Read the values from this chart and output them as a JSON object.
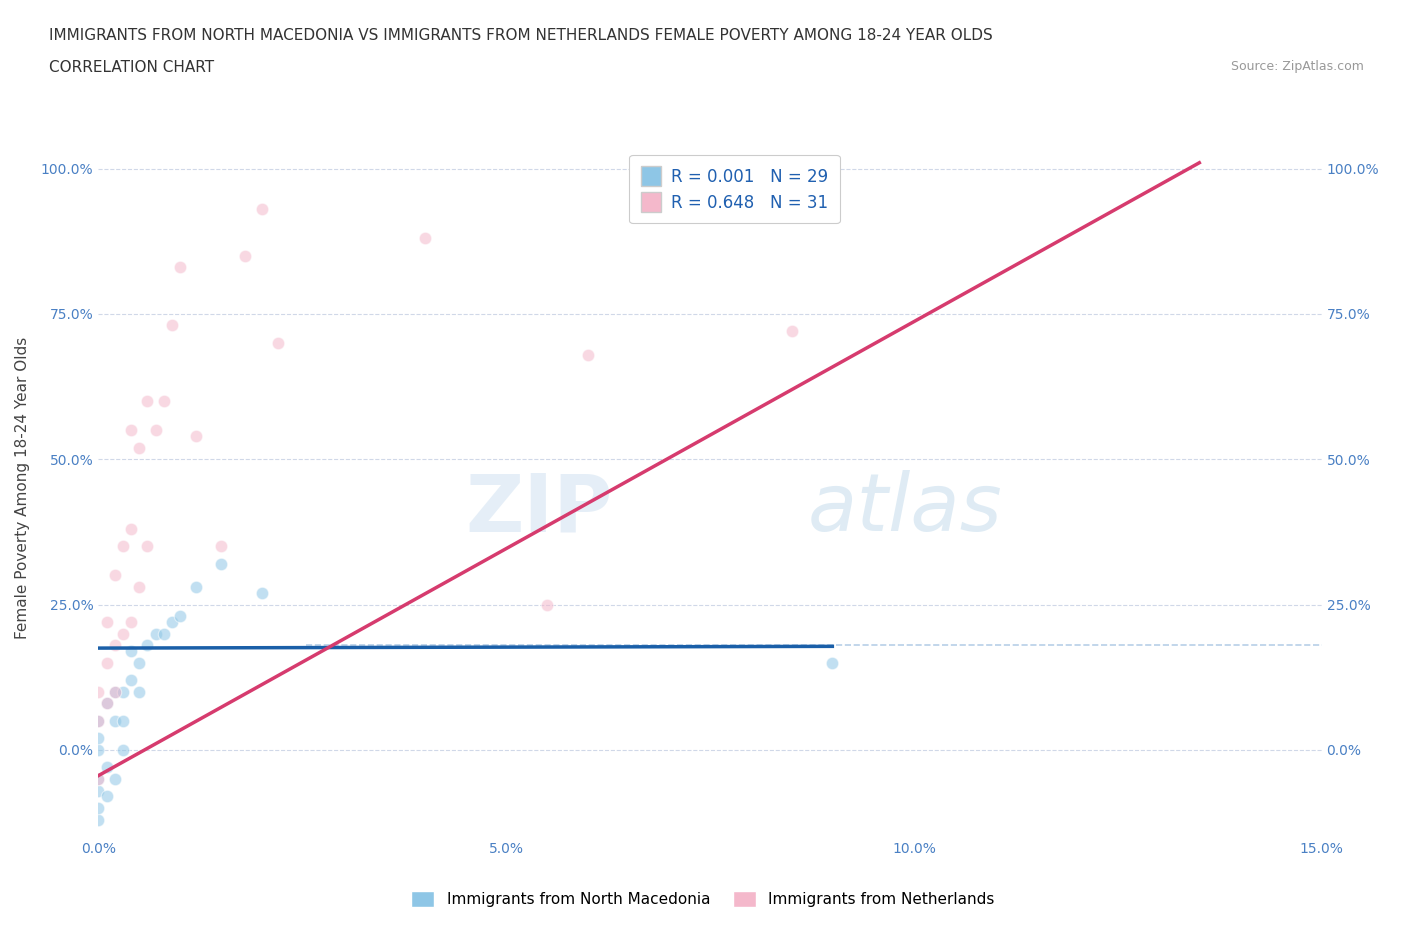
{
  "title_line1": "IMMIGRANTS FROM NORTH MACEDONIA VS IMMIGRANTS FROM NETHERLANDS FEMALE POVERTY AMONG 18-24 YEAR OLDS",
  "title_line2": "CORRELATION CHART",
  "source_text": "Source: ZipAtlas.com",
  "ylabel": "Female Poverty Among 18-24 Year Olds",
  "xlim": [
    0.0,
    0.15
  ],
  "ylim": [
    -0.15,
    1.05
  ],
  "yticks": [
    0.0,
    0.25,
    0.5,
    0.75,
    1.0
  ],
  "ytick_labels": [
    "0.0%",
    "25.0%",
    "50.0%",
    "75.0%",
    "100.0%"
  ],
  "xticks": [
    0.0,
    0.05,
    0.1,
    0.15
  ],
  "xtick_labels": [
    "0.0%",
    "5.0%",
    "10.0%",
    "15.0%"
  ],
  "color_blue": "#8ec6e6",
  "color_pink": "#f4b8cb",
  "color_blue_line": "#1a5fa8",
  "color_pink_line": "#d63b6e",
  "watermark_zip": "ZIP",
  "watermark_atlas": "atlas",
  "bg_color": "#ffffff",
  "grid_color": "#d0d8e8",
  "hline_y": 0.18,
  "hline_color": "#b8cfe8",
  "blue_scatter_x": [
    0.0,
    0.0,
    0.0,
    0.0,
    0.0,
    0.0,
    0.0,
    0.001,
    0.001,
    0.001,
    0.002,
    0.002,
    0.002,
    0.003,
    0.003,
    0.003,
    0.004,
    0.004,
    0.005,
    0.005,
    0.006,
    0.007,
    0.008,
    0.009,
    0.01,
    0.012,
    0.015,
    0.02,
    0.09
  ],
  "blue_scatter_y": [
    -0.12,
    -0.1,
    -0.07,
    -0.05,
    0.0,
    0.02,
    0.05,
    -0.08,
    -0.03,
    0.08,
    -0.05,
    0.05,
    0.1,
    0.0,
    0.05,
    0.1,
    0.12,
    0.17,
    0.1,
    0.15,
    0.18,
    0.2,
    0.2,
    0.22,
    0.23,
    0.28,
    0.32,
    0.27,
    0.15
  ],
  "pink_scatter_x": [
    0.0,
    0.0,
    0.0,
    0.001,
    0.001,
    0.001,
    0.002,
    0.002,
    0.002,
    0.003,
    0.003,
    0.004,
    0.004,
    0.004,
    0.005,
    0.005,
    0.006,
    0.006,
    0.007,
    0.008,
    0.009,
    0.01,
    0.012,
    0.015,
    0.018,
    0.02,
    0.022,
    0.04,
    0.055,
    0.06,
    0.085
  ],
  "pink_scatter_y": [
    -0.05,
    0.05,
    0.1,
    0.08,
    0.15,
    0.22,
    0.1,
    0.18,
    0.3,
    0.2,
    0.35,
    0.22,
    0.38,
    0.55,
    0.28,
    0.52,
    0.35,
    0.6,
    0.55,
    0.6,
    0.73,
    0.83,
    0.54,
    0.35,
    0.85,
    0.93,
    0.7,
    0.88,
    0.25,
    0.68,
    0.72
  ],
  "blue_line_x": [
    0.0,
    0.09
  ],
  "blue_line_y": [
    0.175,
    0.178
  ],
  "pink_line_x": [
    -0.002,
    0.135
  ],
  "pink_line_y": [
    -0.06,
    1.01
  ],
  "legend_text1": "R = 0.001   N = 29",
  "legend_text2": "R = 0.648   N = 31",
  "legend_color": "#2060b0",
  "bottom_legend1": "Immigrants from North Macedonia",
  "bottom_legend2": "Immigrants from Netherlands"
}
